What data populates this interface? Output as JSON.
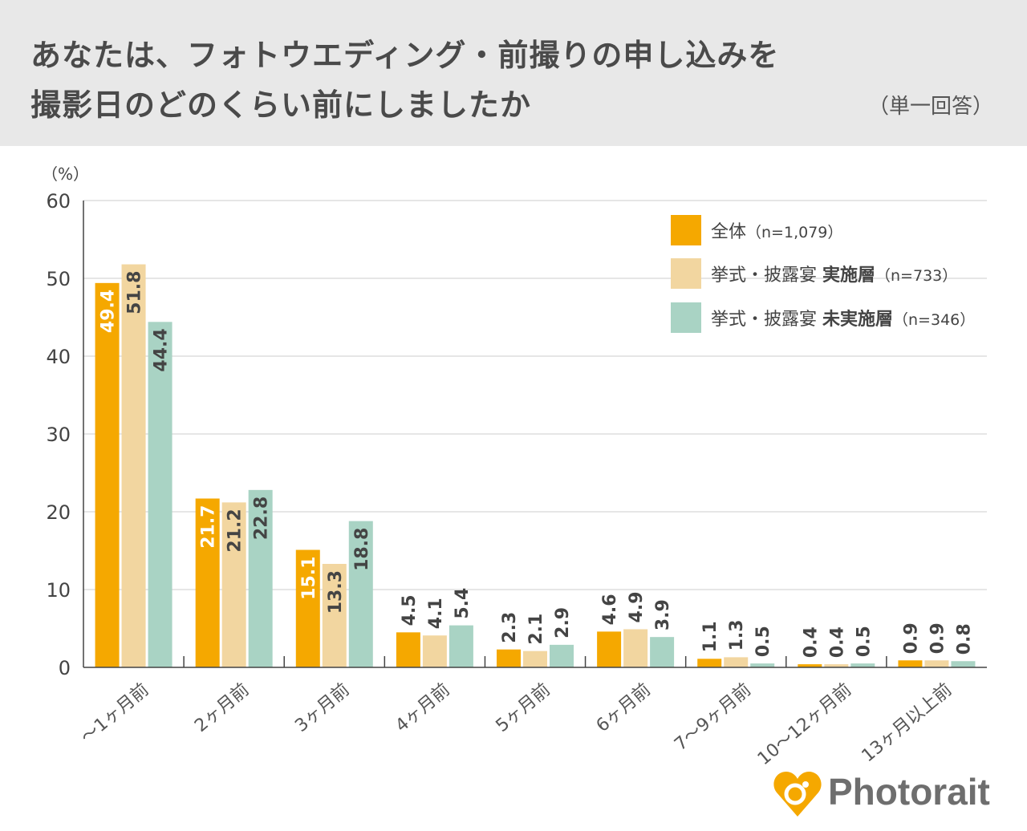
{
  "header": {
    "title_line1": "あなたは、フォトウエディング・前撮りの申し込みを",
    "title_line2": "撮影日のどのくらい前にしましたか",
    "answer_type": "（単一回答）"
  },
  "logo": {
    "text": "Photorait",
    "icon": "heart-camera-icon"
  },
  "chart_data": {
    "type": "bar",
    "title": "あなたは、フォトウエディング・前撮りの申し込みを撮影日のどのくらい前にしましたか",
    "ylabel": "（%）",
    "xlabel": "",
    "ylim": [
      0,
      60
    ],
    "yticks": [
      0,
      10,
      20,
      30,
      40,
      50,
      60
    ],
    "grid": true,
    "legend_position": "top-right",
    "categories": [
      "～1ヶ月前",
      "2ヶ月前",
      "3ヶ月前",
      "4ヶ月前",
      "5ヶ月前",
      "6ヶ月前",
      "7～9ヶ月前",
      "10～12ヶ月前",
      "13ヶ月以上前"
    ],
    "series": [
      {
        "name": "全体（n=1,079）",
        "legend_main": "全体",
        "legend_bold": "",
        "legend_n": "（n=1,079）",
        "color": "#f5a800",
        "label_color": "#ffffff",
        "values": [
          49.4,
          21.7,
          15.1,
          4.5,
          2.3,
          4.6,
          1.1,
          0.4,
          0.9
        ]
      },
      {
        "name": "挙式・披露宴 実施層（n=733）",
        "legend_main": "挙式・披露宴 ",
        "legend_bold": "実施層",
        "legend_n": "（n=733）",
        "color": "#f2d6a0",
        "label_color": "#444444",
        "values": [
          51.8,
          21.2,
          13.3,
          4.1,
          2.1,
          4.9,
          1.3,
          0.4,
          0.9
        ]
      },
      {
        "name": "挙式・披露宴 未実施層（n=346）",
        "legend_main": "挙式・披露宴 ",
        "legend_bold": "未実施層",
        "legend_n": "（n=346）",
        "color": "#a9d3c4",
        "label_color": "#444444",
        "values": [
          44.4,
          22.8,
          18.8,
          5.4,
          2.9,
          3.9,
          0.5,
          0.5,
          0.8
        ]
      }
    ]
  }
}
